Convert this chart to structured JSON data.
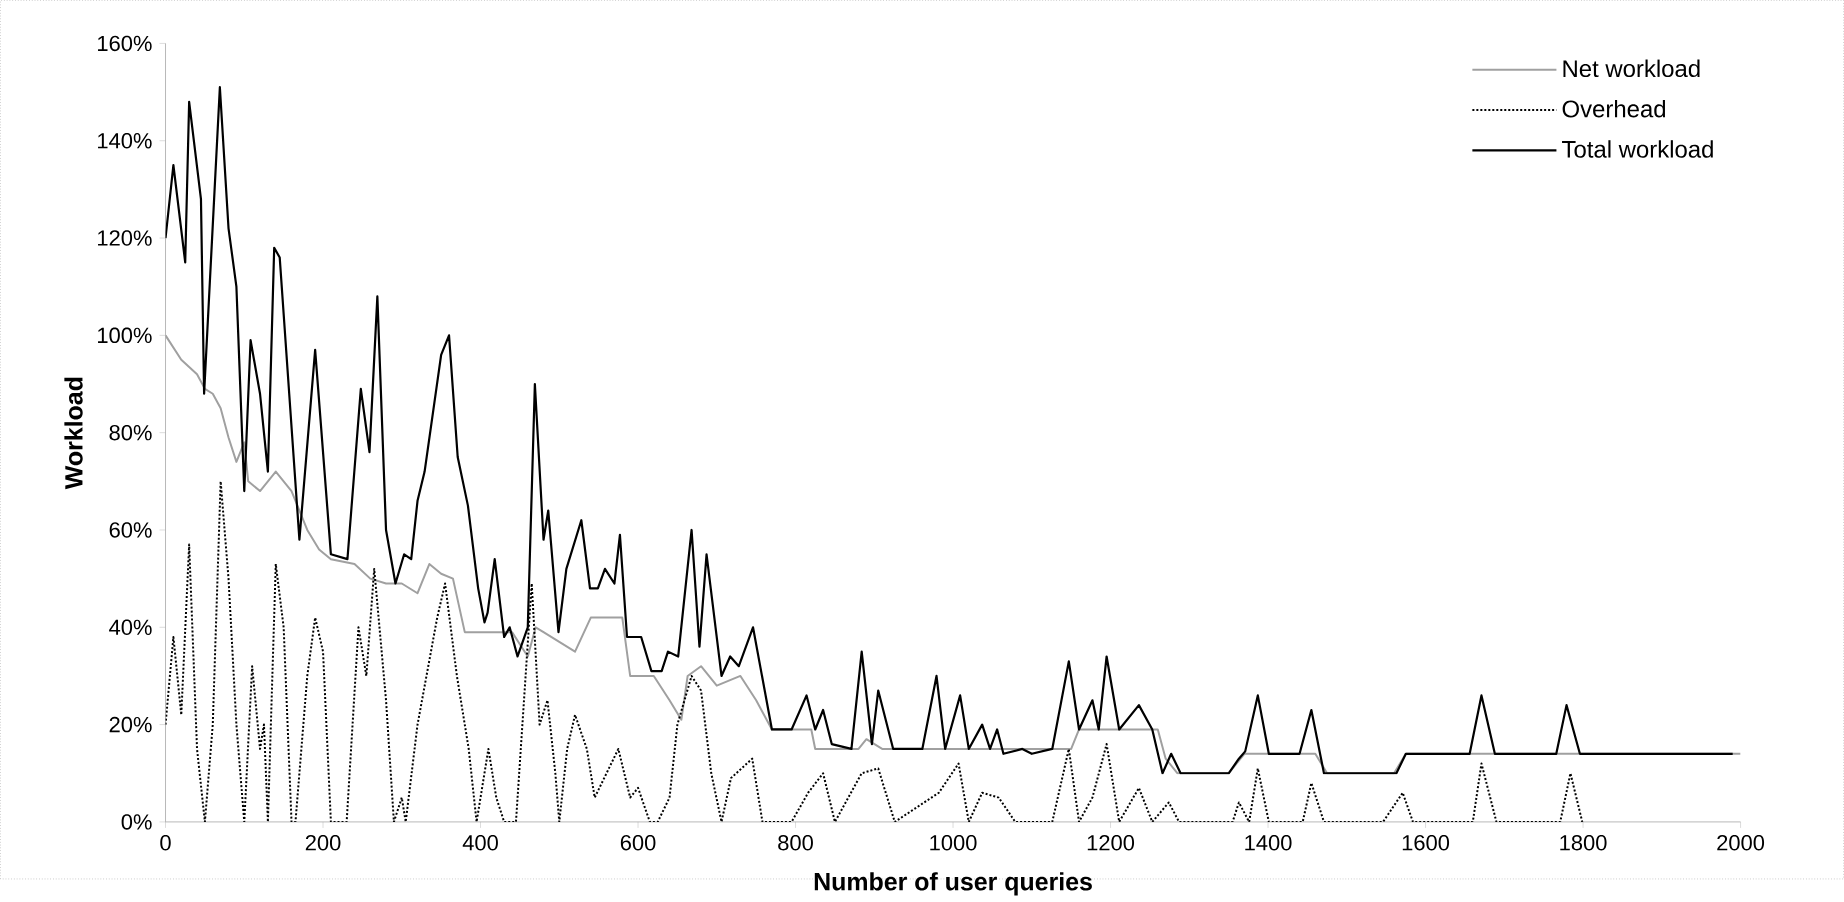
{
  "chart_data": {
    "type": "line",
    "xlabel": "Number of user queries",
    "ylabel": "Workload",
    "xlim": [
      0,
      2000
    ],
    "xticks": [
      0,
      200,
      400,
      600,
      800,
      1000,
      1200,
      1400,
      1600,
      1800,
      2000
    ],
    "ylim": [
      0,
      160
    ],
    "yticks": [
      {
        "value": 0,
        "label": "0%"
      },
      {
        "value": 20,
        "label": "20%"
      },
      {
        "value": 40,
        "label": "40%"
      },
      {
        "value": 60,
        "label": "60%"
      },
      {
        "value": 80,
        "label": "80%"
      },
      {
        "value": 100,
        "label": "100%"
      },
      {
        "value": 120,
        "label": "120%"
      },
      {
        "value": 140,
        "label": "140%"
      },
      {
        "value": 160,
        "label": "160%"
      }
    ],
    "legend": "top right",
    "grid": false,
    "series": [
      {
        "name": "Net workload",
        "color": "#a0a0a0",
        "line_style": "solid",
        "x": [
          0,
          20,
          40,
          50,
          60,
          70,
          80,
          90,
          100,
          105,
          120,
          140,
          150,
          160,
          170,
          180,
          195,
          210,
          240,
          260,
          280,
          300,
          320,
          335,
          350,
          365,
          380,
          400,
          440,
          460,
          470,
          480,
          500,
          520,
          540,
          580,
          590,
          620,
          640,
          655,
          663,
          680,
          700,
          730,
          750,
          770,
          820,
          825,
          880,
          890,
          910,
          1150,
          1160,
          1260,
          1270,
          1285,
          1350,
          1370,
          1460,
          1475,
          1560,
          1575,
          2000
        ],
        "values": [
          100,
          95,
          92,
          89,
          88,
          85,
          79,
          74,
          78,
          70,
          68,
          72,
          70,
          68,
          64,
          60,
          56,
          54,
          53,
          50,
          49,
          49,
          47,
          53,
          51,
          50,
          39,
          39,
          39,
          34,
          40,
          39,
          37,
          35,
          42,
          42,
          30,
          30,
          25,
          21,
          30,
          32,
          28,
          30,
          25,
          19,
          19,
          15,
          15,
          17,
          15,
          15,
          19,
          19,
          13,
          10,
          10,
          14,
          14,
          10,
          10,
          14,
          14
        ]
      },
      {
        "name": "Overhead",
        "color": "#000000",
        "line_style": "dotted",
        "x": [
          0,
          10,
          20,
          30,
          40,
          50,
          60,
          70,
          80,
          90,
          100,
          110,
          120,
          125,
          130,
          140,
          150,
          160,
          165,
          180,
          190,
          200,
          210,
          230,
          245,
          255,
          265,
          280,
          290,
          300,
          305,
          320,
          345,
          355,
          370,
          385,
          395,
          410,
          420,
          430,
          445,
          465,
          475,
          485,
          495,
          500,
          510,
          520,
          535,
          545,
          560,
          575,
          590,
          600,
          615,
          625,
          640,
          650,
          668,
          680,
          693,
          706,
          718,
          745,
          758,
          795,
          816,
          835,
          850,
          884,
          905,
          926,
          982,
          1007,
          1020,
          1037,
          1058,
          1079,
          1126,
          1147,
          1160,
          1177,
          1195,
          1211,
          1236,
          1253,
          1274,
          1287,
          1355,
          1363,
          1376,
          1387,
          1401,
          1444,
          1455,
          1471,
          1546,
          1571,
          1584,
          1660,
          1671,
          1690,
          1771,
          1784,
          1799
        ],
        "values": [
          20,
          38,
          22,
          57,
          15,
          0,
          20,
          70,
          50,
          20,
          0,
          32,
          15,
          20,
          0,
          53,
          40,
          0,
          0,
          30,
          42,
          35,
          0,
          0,
          40,
          30,
          52,
          25,
          0,
          5,
          0,
          20,
          42,
          49,
          30,
          15,
          0,
          15,
          5,
          0,
          0,
          49,
          20,
          25,
          10,
          0,
          15,
          22,
          15,
          5,
          10,
          15,
          5,
          7,
          0,
          0,
          5,
          20,
          30,
          27,
          10,
          0,
          9,
          13,
          0,
          0,
          6,
          10,
          0,
          10,
          11,
          0,
          6,
          12,
          0,
          6,
          5,
          0,
          0,
          15,
          0,
          5,
          16,
          0,
          7,
          0,
          4,
          0,
          0,
          4,
          0,
          11,
          0,
          0,
          8,
          0,
          0,
          6,
          0,
          0,
          12,
          0,
          0,
          10,
          0
        ]
      },
      {
        "name": "Total workload",
        "color": "#000000",
        "line_style": "solid",
        "x": [
          0,
          10,
          25,
          30,
          45,
          49,
          69,
          80,
          90,
          100,
          108,
          120,
          130,
          138,
          145,
          170,
          190,
          210,
          231,
          248,
          259,
          269,
          280,
          292,
          303,
          312,
          320,
          329,
          350,
          360,
          371,
          384,
          397,
          405,
          409,
          418,
          430,
          437,
          447,
          460,
          469,
          480,
          486,
          499,
          509,
          528,
          539,
          549,
          558,
          570,
          577,
          586,
          604,
          617,
          630,
          638,
          651,
          668,
          678,
          687,
          706,
          717,
          728,
          746,
          770,
          795,
          814,
          825,
          835,
          846,
          871,
          884,
          897,
          905,
          924,
          961,
          979,
          990,
          1009,
          1020,
          1037,
          1047,
          1056,
          1064,
          1088,
          1100,
          1126,
          1147,
          1160,
          1177,
          1185,
          1195,
          1211,
          1236,
          1253,
          1266,
          1277,
          1289,
          1350,
          1363,
          1371,
          1387,
          1401,
          1440,
          1455,
          1471,
          1563,
          1575,
          1656,
          1671,
          1688,
          1766,
          1779,
          1796,
          1990
        ],
        "values": [
          120,
          135,
          115,
          148,
          128,
          88,
          151,
          122,
          110,
          68,
          99,
          88,
          72,
          118,
          116,
          58,
          97,
          55,
          54,
          89,
          76,
          108,
          60,
          49,
          55,
          54,
          66,
          72,
          96,
          100,
          75,
          65,
          48,
          41,
          43,
          54,
          38,
          40,
          34,
          40,
          90,
          58,
          64,
          39,
          52,
          62,
          48,
          48,
          52,
          49,
          59,
          38,
          38,
          31,
          31,
          35,
          34,
          60,
          36,
          55,
          30,
          34,
          32,
          40,
          19,
          19,
          26,
          19,
          23,
          16,
          15,
          35,
          16,
          27,
          15,
          15,
          30,
          15,
          26,
          15,
          20,
          15,
          19,
          14,
          15,
          14,
          15,
          33,
          19,
          25,
          19,
          34,
          19,
          24,
          19,
          10,
          14,
          10,
          10,
          13,
          14.5,
          26,
          14,
          14,
          23,
          10,
          10,
          14,
          14,
          26,
          14,
          14,
          24,
          14,
          14
        ]
      }
    ]
  }
}
